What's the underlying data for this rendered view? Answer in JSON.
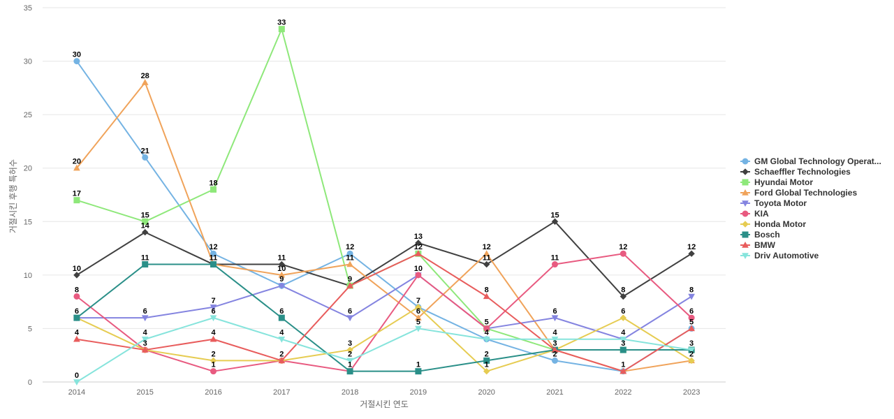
{
  "chart_data": {
    "type": "line",
    "title": "",
    "xlabel": "거절시킨 연도",
    "ylabel": "거절시킨 후행 특허수",
    "x": [
      "2014",
      "2015",
      "2016",
      "2017",
      "2018",
      "2019",
      "2020",
      "2021",
      "2022",
      "2023"
    ],
    "ylim": [
      0,
      35
    ],
    "yticks": [
      0,
      5,
      10,
      15,
      20,
      25,
      30,
      35
    ],
    "grid": true,
    "legend_position": "right",
    "series": [
      {
        "name": "GM Global Technology Operat...",
        "color": "#74b3e3",
        "marker": "circle",
        "values": [
          30,
          21,
          12,
          9,
          12,
          7,
          4,
          2,
          1,
          5
        ]
      },
      {
        "name": "Schaeffler Technologies",
        "color": "#404040",
        "marker": "diamond",
        "values": [
          10,
          14,
          11,
          11,
          9,
          13,
          11,
          15,
          8,
          12
        ]
      },
      {
        "name": "Hyundai Motor",
        "color": "#8ee87a",
        "marker": "square",
        "values": [
          17,
          15,
          18,
          33,
          9,
          12,
          5,
          3,
          3,
          3
        ]
      },
      {
        "name": "Ford Global Technologies",
        "color": "#f0a35a",
        "marker": "triangle",
        "values": [
          20,
          28,
          11,
          10,
          11,
          6,
          12,
          3,
          1,
          2
        ]
      },
      {
        "name": "Toyota Motor",
        "color": "#8484e0",
        "marker": "triangle-down",
        "values": [
          6,
          6,
          7,
          9,
          6,
          10,
          5,
          6,
          4,
          8
        ]
      },
      {
        "name": "KIA",
        "color": "#e85a80",
        "marker": "circle",
        "values": [
          8,
          3,
          1,
          2,
          1,
          10,
          5,
          11,
          12,
          6
        ]
      },
      {
        "name": "Honda Motor",
        "color": "#e6cc52",
        "marker": "diamond",
        "values": [
          6,
          3,
          2,
          2,
          3,
          7,
          1,
          3,
          6,
          2
        ]
      },
      {
        "name": "Bosch",
        "color": "#2a8f88",
        "marker": "square",
        "values": [
          6,
          11,
          11,
          6,
          1,
          1,
          2,
          3,
          3,
          3
        ]
      },
      {
        "name": "BMW",
        "color": "#e85c5c",
        "marker": "triangle",
        "values": [
          4,
          3,
          4,
          2,
          9,
          12,
          8,
          3,
          1,
          5
        ]
      },
      {
        "name": "Driv Automotive",
        "color": "#86e4dc",
        "marker": "triangle-down",
        "values": [
          0,
          4,
          6,
          4,
          2,
          5,
          4,
          4,
          4,
          3
        ]
      }
    ],
    "data_labels": [
      {
        "x": "2014",
        "y": 30,
        "text": "30"
      },
      {
        "x": "2014",
        "y": 20,
        "text": "20"
      },
      {
        "x": "2014",
        "y": 17,
        "text": "17"
      },
      {
        "x": "2014",
        "y": 10,
        "text": "10"
      },
      {
        "x": "2014",
        "y": 8,
        "text": "8"
      },
      {
        "x": "2014",
        "y": 6,
        "text": "6"
      },
      {
        "x": "2014",
        "y": 4,
        "text": "4"
      },
      {
        "x": "2014",
        "y": 0,
        "text": "0"
      },
      {
        "x": "2015",
        "y": 28,
        "text": "28"
      },
      {
        "x": "2015",
        "y": 21,
        "text": "21"
      },
      {
        "x": "2015",
        "y": 15,
        "text": "15"
      },
      {
        "x": "2015",
        "y": 14,
        "text": "14"
      },
      {
        "x": "2015",
        "y": 11,
        "text": "11"
      },
      {
        "x": "2015",
        "y": 6,
        "text": "6"
      },
      {
        "x": "2015",
        "y": 4,
        "text": "4"
      },
      {
        "x": "2015",
        "y": 3,
        "text": "3"
      },
      {
        "x": "2016",
        "y": 18,
        "text": "18"
      },
      {
        "x": "2016",
        "y": 12,
        "text": "12"
      },
      {
        "x": "2016",
        "y": 11,
        "text": "11"
      },
      {
        "x": "2016",
        "y": 7,
        "text": "7"
      },
      {
        "x": "2016",
        "y": 6,
        "text": "6"
      },
      {
        "x": "2016",
        "y": 4,
        "text": "4"
      },
      {
        "x": "2016",
        "y": 2,
        "text": "2"
      },
      {
        "x": "2016",
        "y": 1,
        "text": "1"
      },
      {
        "x": "2017",
        "y": 33,
        "text": "33"
      },
      {
        "x": "2017",
        "y": 11,
        "text": "11"
      },
      {
        "x": "2017",
        "y": 10,
        "text": "10"
      },
      {
        "x": "2017",
        "y": 9,
        "text": "9"
      },
      {
        "x": "2017",
        "y": 6,
        "text": "6"
      },
      {
        "x": "2017",
        "y": 4,
        "text": "4"
      },
      {
        "x": "2017",
        "y": 2,
        "text": "2"
      },
      {
        "x": "2018",
        "y": 12,
        "text": "12"
      },
      {
        "x": "2018",
        "y": 11,
        "text": "11"
      },
      {
        "x": "2018",
        "y": 9,
        "text": "9"
      },
      {
        "x": "2018",
        "y": 6,
        "text": "6"
      },
      {
        "x": "2018",
        "y": 3,
        "text": "3"
      },
      {
        "x": "2018",
        "y": 2,
        "text": "2"
      },
      {
        "x": "2018",
        "y": 1,
        "text": "1"
      },
      {
        "x": "2019",
        "y": 13,
        "text": "13"
      },
      {
        "x": "2019",
        "y": 12,
        "text": "12"
      },
      {
        "x": "2019",
        "y": 10,
        "text": "10"
      },
      {
        "x": "2019",
        "y": 7,
        "text": "7"
      },
      {
        "x": "2019",
        "y": 6,
        "text": "6"
      },
      {
        "x": "2019",
        "y": 5,
        "text": "5"
      },
      {
        "x": "2019",
        "y": 1,
        "text": "1"
      },
      {
        "x": "2020",
        "y": 12,
        "text": "12"
      },
      {
        "x": "2020",
        "y": 11,
        "text": "11"
      },
      {
        "x": "2020",
        "y": 8,
        "text": "8"
      },
      {
        "x": "2020",
        "y": 5,
        "text": "5"
      },
      {
        "x": "2020",
        "y": 4,
        "text": "4"
      },
      {
        "x": "2020",
        "y": 2,
        "text": "2"
      },
      {
        "x": "2020",
        "y": 1,
        "text": "1"
      },
      {
        "x": "2021",
        "y": 15,
        "text": "15"
      },
      {
        "x": "2021",
        "y": 11,
        "text": "11"
      },
      {
        "x": "2021",
        "y": 6,
        "text": "6"
      },
      {
        "x": "2021",
        "y": 4,
        "text": "4"
      },
      {
        "x": "2021",
        "y": 3,
        "text": "3"
      },
      {
        "x": "2021",
        "y": 2,
        "text": "2"
      },
      {
        "x": "2022",
        "y": 12,
        "text": "12"
      },
      {
        "x": "2022",
        "y": 8,
        "text": "8"
      },
      {
        "x": "2022",
        "y": 6,
        "text": "6"
      },
      {
        "x": "2022",
        "y": 4,
        "text": "4"
      },
      {
        "x": "2022",
        "y": 3,
        "text": "3"
      },
      {
        "x": "2022",
        "y": 1,
        "text": "1"
      },
      {
        "x": "2023",
        "y": 12,
        "text": "12"
      },
      {
        "x": "2023",
        "y": 8,
        "text": "8"
      },
      {
        "x": "2023",
        "y": 6,
        "text": "6"
      },
      {
        "x": "2023",
        "y": 5,
        "text": "5"
      },
      {
        "x": "2023",
        "y": 3,
        "text": "3"
      },
      {
        "x": "2023",
        "y": 2,
        "text": "2"
      }
    ]
  }
}
